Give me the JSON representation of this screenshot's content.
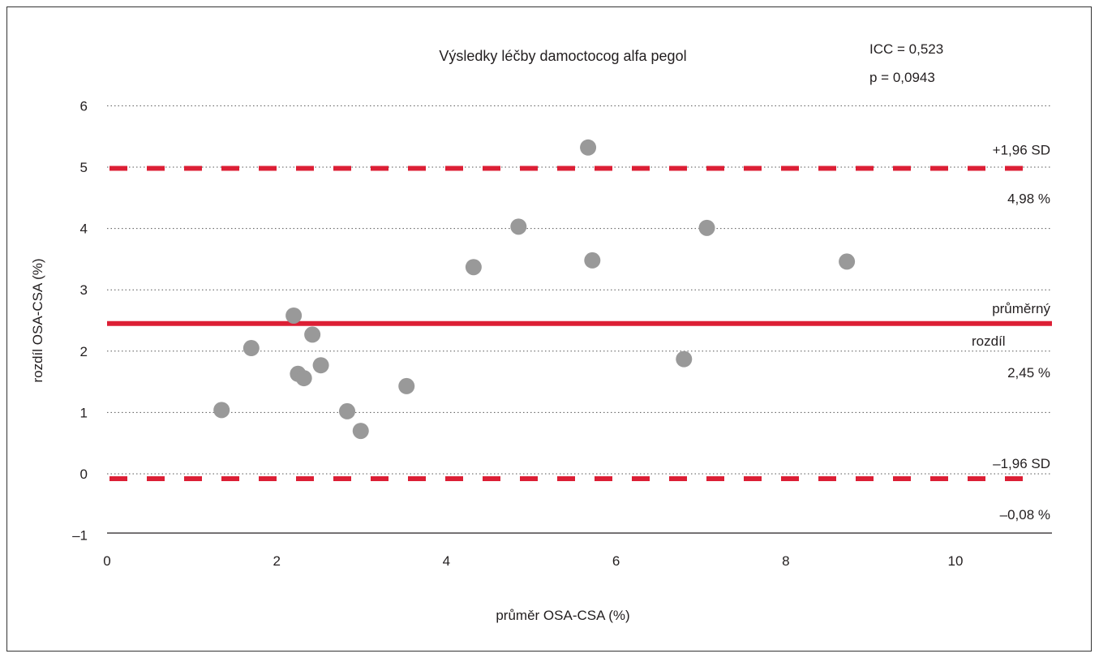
{
  "chart_data": {
    "type": "scatter",
    "title": "Výsledky léčby damoctocog alfa pegol",
    "xlabel": "průměr OSA-CSA (%)",
    "ylabel": "rozdíl OSA-CSA (%)",
    "xlim": [
      0,
      11.2
    ],
    "ylim": [
      -1,
      6
    ],
    "x_ticks": [
      "0",
      "2",
      "4",
      "6",
      "8",
      "10"
    ],
    "y_ticks": [
      "–1",
      "0",
      "1",
      "2",
      "3",
      "4",
      "5",
      "6"
    ],
    "grid": "horizontal dotted",
    "points": [
      {
        "x": 1.35,
        "y": 1.04
      },
      {
        "x": 1.7,
        "y": 2.05
      },
      {
        "x": 2.2,
        "y": 2.58
      },
      {
        "x": 2.25,
        "y": 1.63
      },
      {
        "x": 2.32,
        "y": 1.56
      },
      {
        "x": 2.42,
        "y": 2.27
      },
      {
        "x": 2.52,
        "y": 1.77
      },
      {
        "x": 2.83,
        "y": 1.02
      },
      {
        "x": 2.99,
        "y": 0.7
      },
      {
        "x": 3.53,
        "y": 1.43
      },
      {
        "x": 4.32,
        "y": 3.37
      },
      {
        "x": 4.85,
        "y": 4.03
      },
      {
        "x": 5.67,
        "y": 5.32
      },
      {
        "x": 5.72,
        "y": 3.48
      },
      {
        "x": 6.8,
        "y": 1.87
      },
      {
        "x": 7.07,
        "y": 4.01
      },
      {
        "x": 8.72,
        "y": 3.46
      }
    ],
    "reference_lines": [
      {
        "y": 4.98,
        "style": "dashed",
        "label_top": "+1,96 SD",
        "label_bottom": "4,98 %"
      },
      {
        "y": 2.45,
        "style": "solid",
        "label_top": "průměrný",
        "label_middle": "rozdíl",
        "label_bottom": "2,45 %"
      },
      {
        "y": -0.08,
        "style": "dashed",
        "label_top": "–1,96 SD",
        "label_bottom": "–0,08 %"
      }
    ],
    "stats": {
      "icc": "ICC = 0,523",
      "p": "p = 0,0943"
    },
    "colors": {
      "points": "#999999",
      "lines": "#dc1f35",
      "grid": "#555555",
      "text": "#231f20"
    }
  }
}
